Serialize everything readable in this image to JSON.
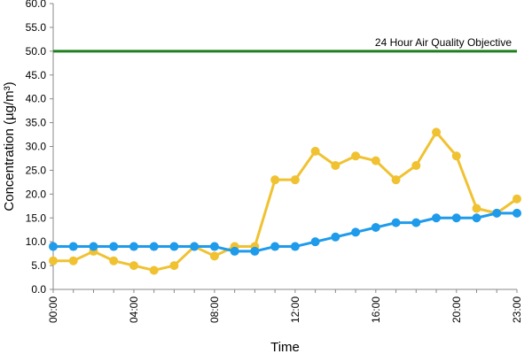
{
  "chart_data": {
    "type": "line",
    "xlabel": "Time",
    "ylabel": "Concentration (µg/m³)",
    "ylim": [
      0,
      60
    ],
    "y_ticks": [
      "0.0",
      "5.0",
      "10.0",
      "15.0",
      "20.0",
      "25.0",
      "30.0",
      "35.0",
      "40.0",
      "45.0",
      "50.0",
      "55.0",
      "60.0"
    ],
    "x_tick_labels": [
      "00:00",
      "04:00",
      "08:00",
      "12:00",
      "16:00",
      "20:00",
      "23:00"
    ],
    "x_hours": [
      0,
      1,
      2,
      3,
      4,
      5,
      6,
      7,
      8,
      9,
      10,
      11,
      12,
      13,
      14,
      15,
      16,
      17,
      18,
      19,
      20,
      21,
      22,
      23
    ],
    "grid": false,
    "series": [
      {
        "color": "#F0C232",
        "values": [
          6,
          6,
          8,
          6,
          5,
          4,
          5,
          9,
          7,
          9,
          9,
          23,
          23,
          29,
          26,
          28,
          27,
          23,
          26,
          33,
          28,
          17,
          16,
          19
        ]
      },
      {
        "color": "#1E9BEB",
        "values": [
          9,
          9,
          9,
          9,
          9,
          9,
          9,
          9,
          9,
          8,
          8,
          9,
          9,
          10,
          11,
          12,
          13,
          14,
          14,
          15,
          15,
          15,
          16,
          16
        ]
      }
    ],
    "reference_line": {
      "label": "24 Hour Air Quality Objective",
      "value": 50,
      "color": "#1E7F1E"
    }
  }
}
